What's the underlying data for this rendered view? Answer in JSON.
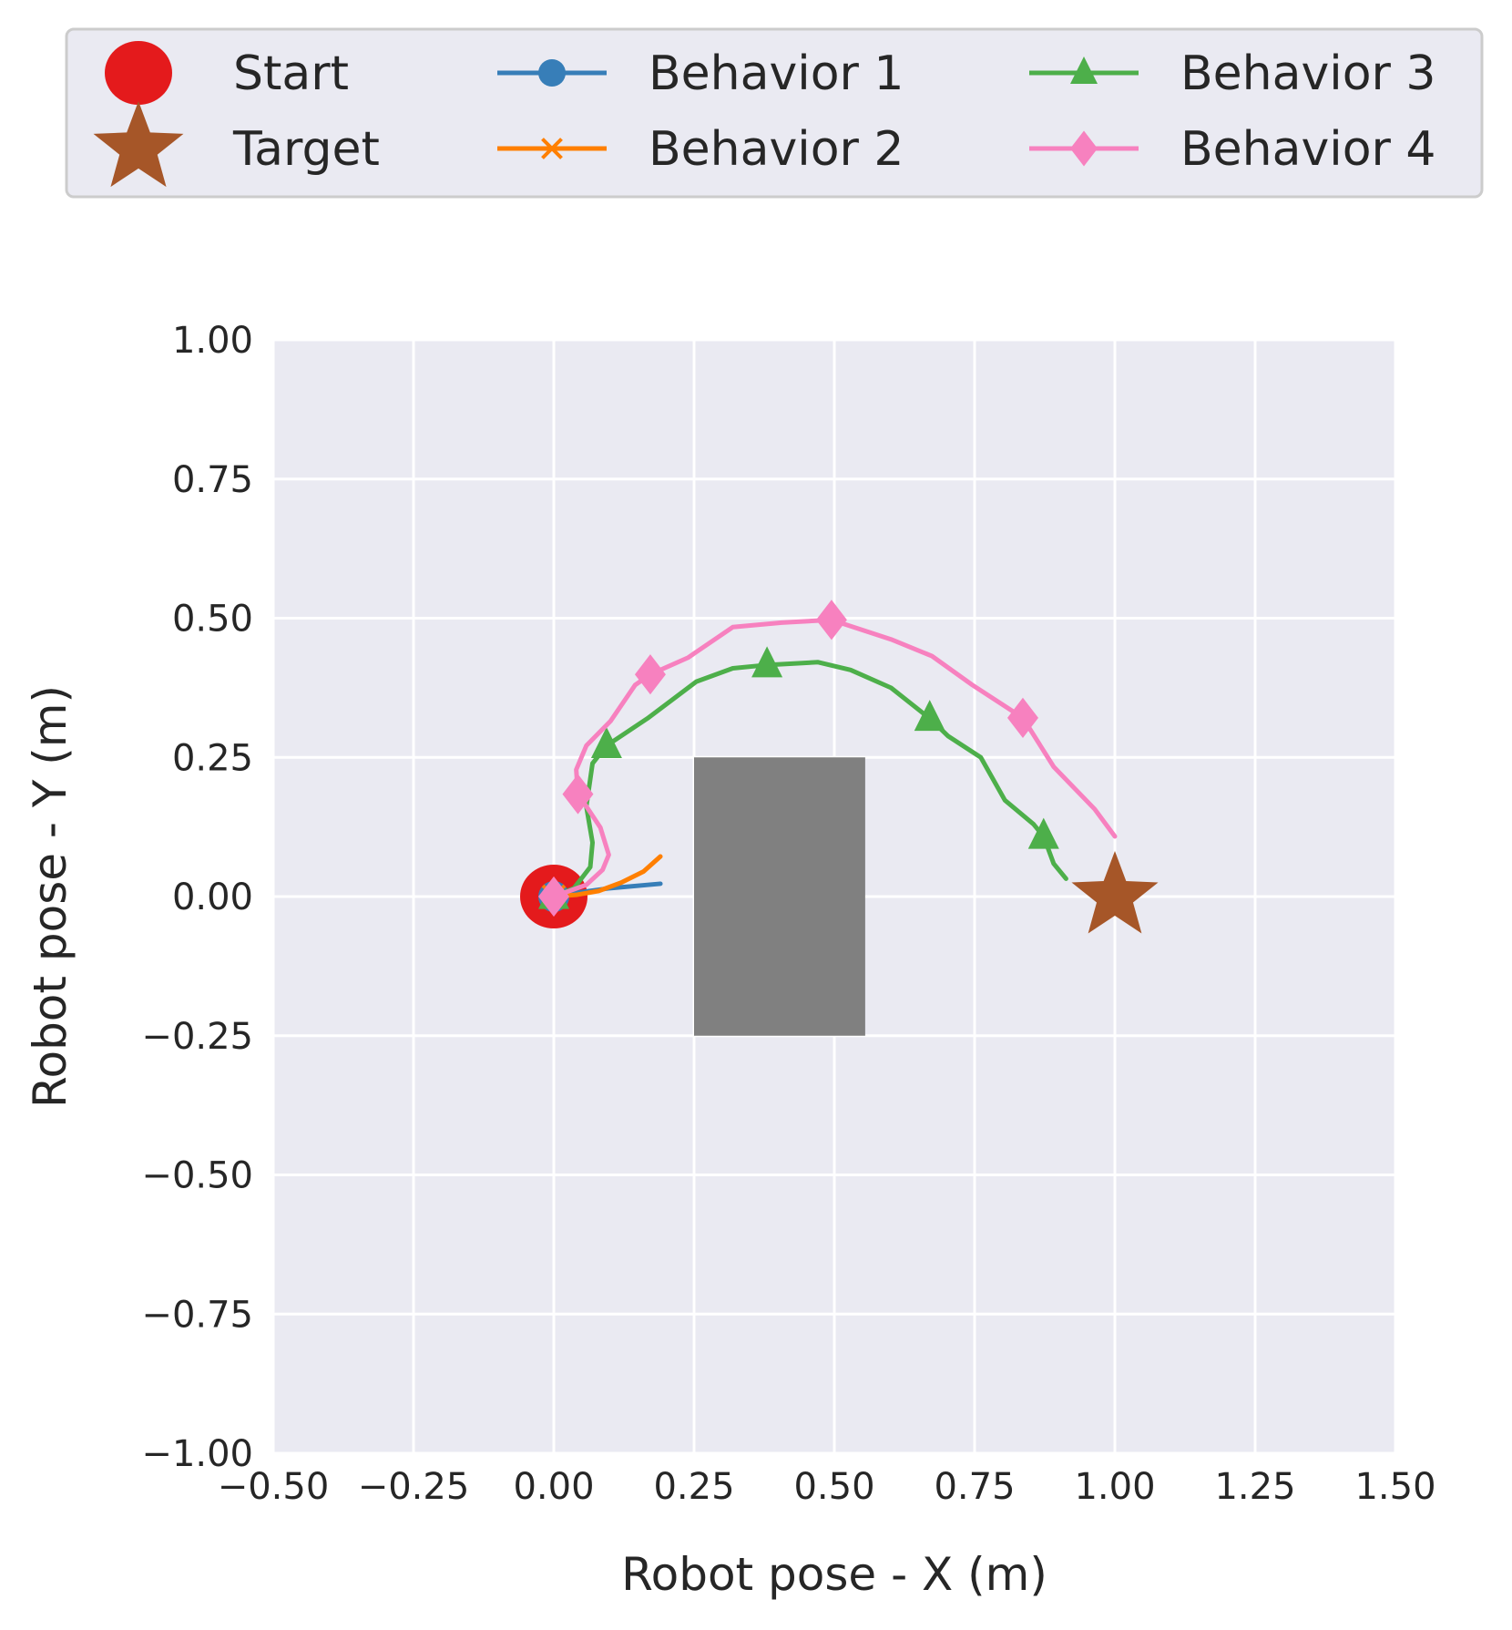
{
  "chart_data": {
    "type": "line",
    "title": "",
    "xlabel": "Robot pose - X (m)",
    "ylabel": "Robot pose - Y (m)",
    "xlim": [
      -0.5,
      1.5
    ],
    "ylim": [
      -1.0,
      1.0
    ],
    "xticks": [
      -0.5,
      -0.25,
      0.0,
      0.25,
      0.5,
      0.75,
      1.0,
      1.25,
      1.5
    ],
    "xtick_labels": [
      "−0.50",
      "−0.25",
      "0.00",
      "0.25",
      "0.50",
      "0.75",
      "1.00",
      "1.25",
      "1.50"
    ],
    "yticks": [
      1.0,
      0.75,
      0.5,
      0.25,
      0.0,
      -0.25,
      -0.5,
      -0.75,
      -1.0
    ],
    "ytick_labels": [
      "1.00",
      "0.75",
      "0.50",
      "0.25",
      "0.00",
      "−0.25",
      "−0.50",
      "−0.75",
      "−1.00"
    ],
    "grid": true,
    "legend_position": "top (above plot), 3 columns",
    "obstacle": {
      "x": [
        0.25,
        0.555
      ],
      "y": [
        -0.25,
        0.25
      ],
      "color": "#808080"
    },
    "start": {
      "name": "Start",
      "x": 0,
      "y": 0,
      "color": "#e41a1c",
      "marker": "circle"
    },
    "target": {
      "name": "Target",
      "x": 1.0,
      "y": 0,
      "color": "#a65628",
      "marker": "star"
    },
    "series": [
      {
        "name": "Behavior 1",
        "color": "#377eb8",
        "marker": "circle",
        "x": [
          0,
          0.05,
          0.1,
          0.19
        ],
        "y": [
          0,
          0.008,
          0.015,
          0.023
        ],
        "marker_idx": [
          0
        ]
      },
      {
        "name": "Behavior 2",
        "color": "#ff7f00",
        "marker": "x",
        "x": [
          0,
          0.04,
          0.08,
          0.12,
          0.16,
          0.19
        ],
        "y": [
          0,
          0.003,
          0.01,
          0.025,
          0.045,
          0.072
        ],
        "marker_idx": [
          0
        ]
      },
      {
        "name": "Behavior 3",
        "color": "#4daf4a",
        "marker": "triangle",
        "x": [
          0,
          0.036,
          0.065,
          0.069,
          0.058,
          0.069,
          0.094,
          0.167,
          0.254,
          0.319,
          0.38,
          0.471,
          0.529,
          0.601,
          0.67,
          0.703,
          0.761,
          0.804,
          0.855,
          0.873,
          0.891,
          0.913
        ],
        "y": [
          0,
          0.015,
          0.053,
          0.097,
          0.162,
          0.239,
          0.271,
          0.32,
          0.386,
          0.41,
          0.416,
          0.421,
          0.407,
          0.375,
          0.32,
          0.288,
          0.25,
          0.173,
          0.13,
          0.108,
          0.059,
          0.032
        ],
        "marker_idx": [
          0,
          6,
          10,
          14,
          19
        ]
      },
      {
        "name": "Behavior 4",
        "color": "#f781bf",
        "marker": "diamond",
        "x": [
          0,
          0.058,
          0.087,
          0.098,
          0.083,
          0.058,
          0.043,
          0.04,
          0.058,
          0.101,
          0.145,
          0.172,
          0.239,
          0.319,
          0.406,
          0.495,
          0.601,
          0.674,
          0.746,
          0.836,
          0.891,
          0.964,
          1.0
        ],
        "y": [
          0,
          0.021,
          0.048,
          0.075,
          0.124,
          0.162,
          0.184,
          0.228,
          0.271,
          0.315,
          0.38,
          0.399,
          0.429,
          0.484,
          0.492,
          0.497,
          0.462,
          0.432,
          0.38,
          0.321,
          0.233,
          0.157,
          0.108
        ],
        "marker_idx": [
          0,
          6,
          11,
          15,
          19
        ]
      }
    ]
  }
}
